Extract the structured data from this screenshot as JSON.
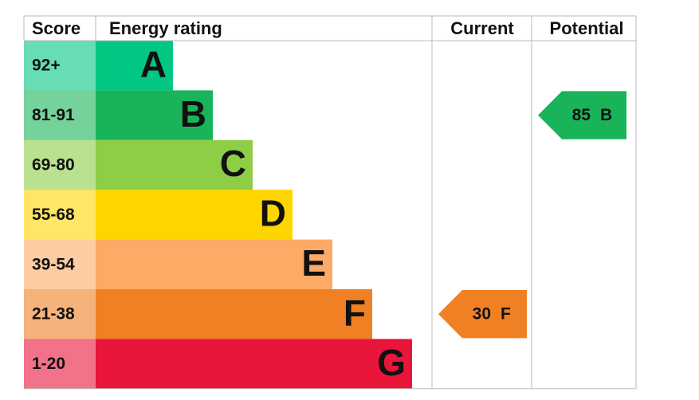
{
  "header": {
    "score": "Score",
    "rating": "Energy rating",
    "current": "Current",
    "potential": "Potential"
  },
  "bands": [
    {
      "score": "92+",
      "letter": "A",
      "color": "#00c781"
    },
    {
      "score": "81-91",
      "letter": "B",
      "color": "#19b459"
    },
    {
      "score": "69-80",
      "letter": "C",
      "color": "#8dce46"
    },
    {
      "score": "55-68",
      "letter": "D",
      "color": "#ffd500"
    },
    {
      "score": "39-54",
      "letter": "E",
      "color": "#fcaa65"
    },
    {
      "score": "21-38",
      "letter": "F",
      "color": "#ef8023"
    },
    {
      "score": "1-20",
      "letter": "G",
      "color": "#e9153b"
    }
  ],
  "current": {
    "value": 30,
    "letter": "F"
  },
  "potential": {
    "value": 85,
    "letter": "B"
  }
}
